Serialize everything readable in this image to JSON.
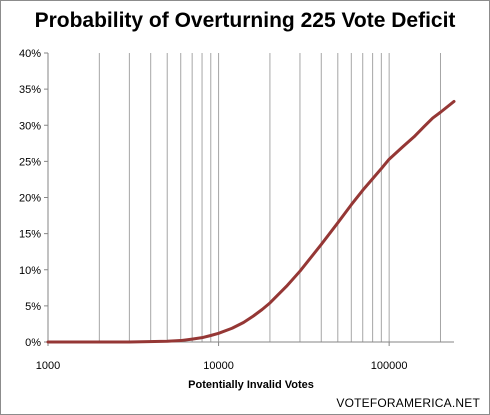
{
  "chart_data": {
    "type": "line",
    "title": "Probability of Overturning 225 Vote Deficit",
    "xlabel": "Potentially Invalid Votes",
    "ylabel": "",
    "x_scale": "log",
    "xlim": [
      1000,
      240000
    ],
    "ylim": [
      0,
      0.4
    ],
    "x_tick_labels": [
      "1000",
      "10000",
      "100000"
    ],
    "y_tick_labels": [
      "0%",
      "5%",
      "10%",
      "15%",
      "20%",
      "25%",
      "30%",
      "35%",
      "40%"
    ],
    "grid": {
      "vertical_minor": true,
      "horizontal": false
    },
    "legend": "none",
    "line_color": "#953735",
    "series": [
      {
        "x": [
          1000,
          2000,
          3000,
          5000,
          6000,
          7000,
          8000,
          9000,
          10000,
          12000,
          14000,
          16000,
          18000,
          20000,
          25000,
          30000,
          40000,
          50000,
          60000,
          70000,
          80000,
          90000,
          100000,
          120000,
          140000,
          160000,
          180000,
          200000,
          240000
        ],
        "values": [
          0,
          0,
          0,
          0.001,
          0.002,
          0.004,
          0.006,
          0.009,
          0.012,
          0.019,
          0.027,
          0.036,
          0.045,
          0.054,
          0.077,
          0.098,
          0.135,
          0.165,
          0.19,
          0.21,
          0.226,
          0.24,
          0.253,
          0.27,
          0.284,
          0.298,
          0.31,
          0.318,
          0.333
        ]
      }
    ]
  },
  "watermark": "VOTEFORAMERICA.NET"
}
